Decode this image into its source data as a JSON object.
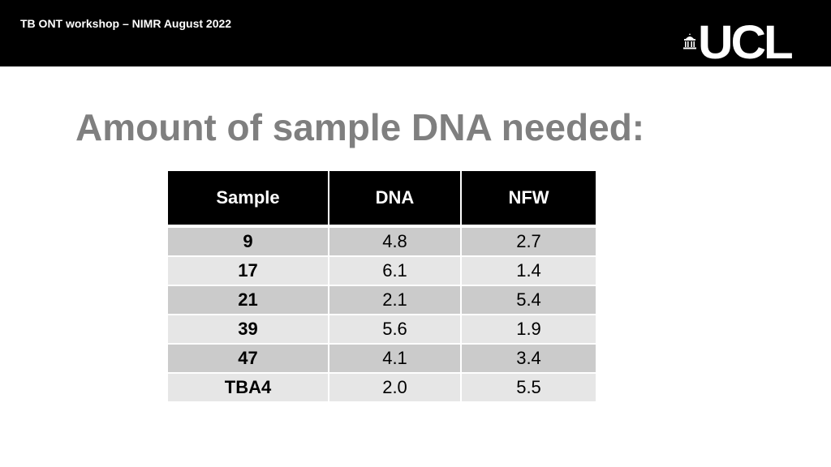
{
  "header": {
    "text": "TB ONT workshop – NIMR August 2022",
    "logo_text": "UCL",
    "logo_icon": "portico-icon"
  },
  "slide": {
    "title": "Amount of sample DNA needed:"
  },
  "table": {
    "columns": [
      "Sample",
      "DNA",
      "NFW"
    ],
    "rows": [
      {
        "sample": "9",
        "dna": "4.8",
        "nfw": "2.7"
      },
      {
        "sample": "17",
        "dna": "6.1",
        "nfw": "1.4"
      },
      {
        "sample": "21",
        "dna": "2.1",
        "nfw": "5.4"
      },
      {
        "sample": "39",
        "dna": "5.6",
        "nfw": "1.9"
      },
      {
        "sample": "47",
        "dna": "4.1",
        "nfw": "3.4"
      },
      {
        "sample": "TBA4",
        "dna": "2.0",
        "nfw": "5.5"
      }
    ]
  },
  "colors": {
    "header_bg": "#000000",
    "title": "#7f7f7f",
    "row_dark": "#cbcbcb",
    "row_light": "#e6e6e6"
  }
}
